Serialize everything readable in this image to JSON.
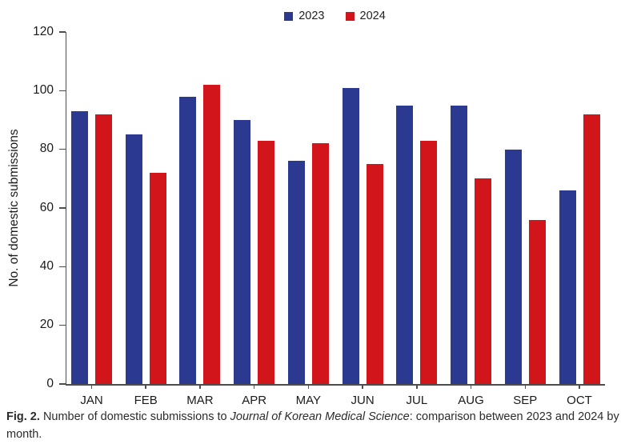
{
  "colors": {
    "series_2023": "#2b3990",
    "series_2024": "#d2151b",
    "axis": "#4d4d4d",
    "text": "#1a1a1a"
  },
  "chart_data": {
    "type": "bar",
    "categories": [
      "JAN",
      "FEB",
      "MAR",
      "APR",
      "MAY",
      "JUN",
      "JUL",
      "AUG",
      "SEP",
      "OCT"
    ],
    "series": [
      {
        "name": "2023",
        "color": "#2b3990",
        "values": [
          93,
          85,
          98,
          90,
          76,
          101,
          95,
          95,
          80,
          66
        ]
      },
      {
        "name": "2024",
        "color": "#d2151b",
        "values": [
          92,
          72,
          102,
          83,
          82,
          75,
          83,
          70,
          56,
          92
        ]
      }
    ],
    "title": "",
    "xlabel": "",
    "ylabel": "No. of domestic submissions",
    "ylim": [
      0,
      120
    ],
    "ytick_step": 20,
    "grid": false,
    "legend_position": "top-center"
  },
  "caption": {
    "label": "Fig. 2.",
    "before_italic": "Number of domestic submissions to",
    "italic": "Journal of Korean Medical Science",
    "after_italic": ": comparison between 2023 and 2024 by month."
  }
}
